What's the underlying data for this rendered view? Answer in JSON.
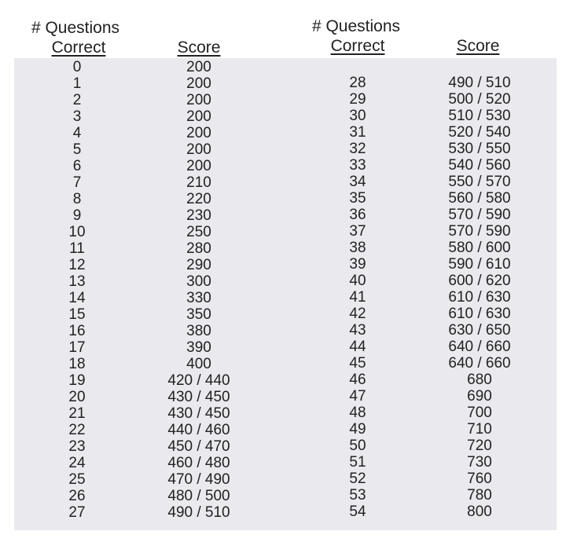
{
  "headers": {
    "left": {
      "line1": "# Questions",
      "line2": "Correct",
      "score": "Score"
    },
    "right": {
      "line1": "# Questions",
      "line2": "Correct",
      "score": "Score"
    }
  },
  "left_rows": [
    [
      "0",
      "200"
    ],
    [
      "1",
      "200"
    ],
    [
      "2",
      "200"
    ],
    [
      "3",
      "200"
    ],
    [
      "4",
      "200"
    ],
    [
      "5",
      "200"
    ],
    [
      "6",
      "200"
    ],
    [
      "7",
      "210"
    ],
    [
      "8",
      "220"
    ],
    [
      "9",
      "230"
    ],
    [
      "10",
      "250"
    ],
    [
      "11",
      "280"
    ],
    [
      "12",
      "290"
    ],
    [
      "13",
      "300"
    ],
    [
      "14",
      "330"
    ],
    [
      "15",
      "350"
    ],
    [
      "16",
      "380"
    ],
    [
      "17",
      "390"
    ],
    [
      "18",
      "400"
    ],
    [
      "19",
      "420 / 440"
    ],
    [
      "20",
      "430 / 450"
    ],
    [
      "21",
      "430 / 450"
    ],
    [
      "22",
      "440 / 460"
    ],
    [
      "23",
      "450 / 470"
    ],
    [
      "24",
      "460 / 480"
    ],
    [
      "25",
      "470 / 490"
    ],
    [
      "26",
      "480 / 500"
    ],
    [
      "27",
      "490 / 510"
    ]
  ],
  "right_rows": [
    [
      "28",
      "490 / 510"
    ],
    [
      "29",
      "500 / 520"
    ],
    [
      "30",
      "510 / 530"
    ],
    [
      "31",
      "520 / 540"
    ],
    [
      "32",
      "530 / 550"
    ],
    [
      "33",
      "540 / 560"
    ],
    [
      "34",
      "550 / 570"
    ],
    [
      "35",
      "560 / 580"
    ],
    [
      "36",
      "570 / 590"
    ],
    [
      "37",
      "570 / 590"
    ],
    [
      "38",
      "580 / 600"
    ],
    [
      "39",
      "590 / 610"
    ],
    [
      "40",
      "600 / 620"
    ],
    [
      "41",
      "610 / 630"
    ],
    [
      "42",
      "610 / 630"
    ],
    [
      "43",
      "630 / 650"
    ],
    [
      "44",
      "640 / 660"
    ],
    [
      "45",
      "640 / 660"
    ],
    [
      "46",
      "680"
    ],
    [
      "47",
      "690"
    ],
    [
      "48",
      "700"
    ],
    [
      "49",
      "710"
    ],
    [
      "50",
      "720"
    ],
    [
      "51",
      "730"
    ],
    [
      "52",
      "760"
    ],
    [
      "53",
      "780"
    ],
    [
      "54",
      "800"
    ]
  ],
  "colors": {
    "panel": "#e9e9ee",
    "text": "#222222"
  }
}
